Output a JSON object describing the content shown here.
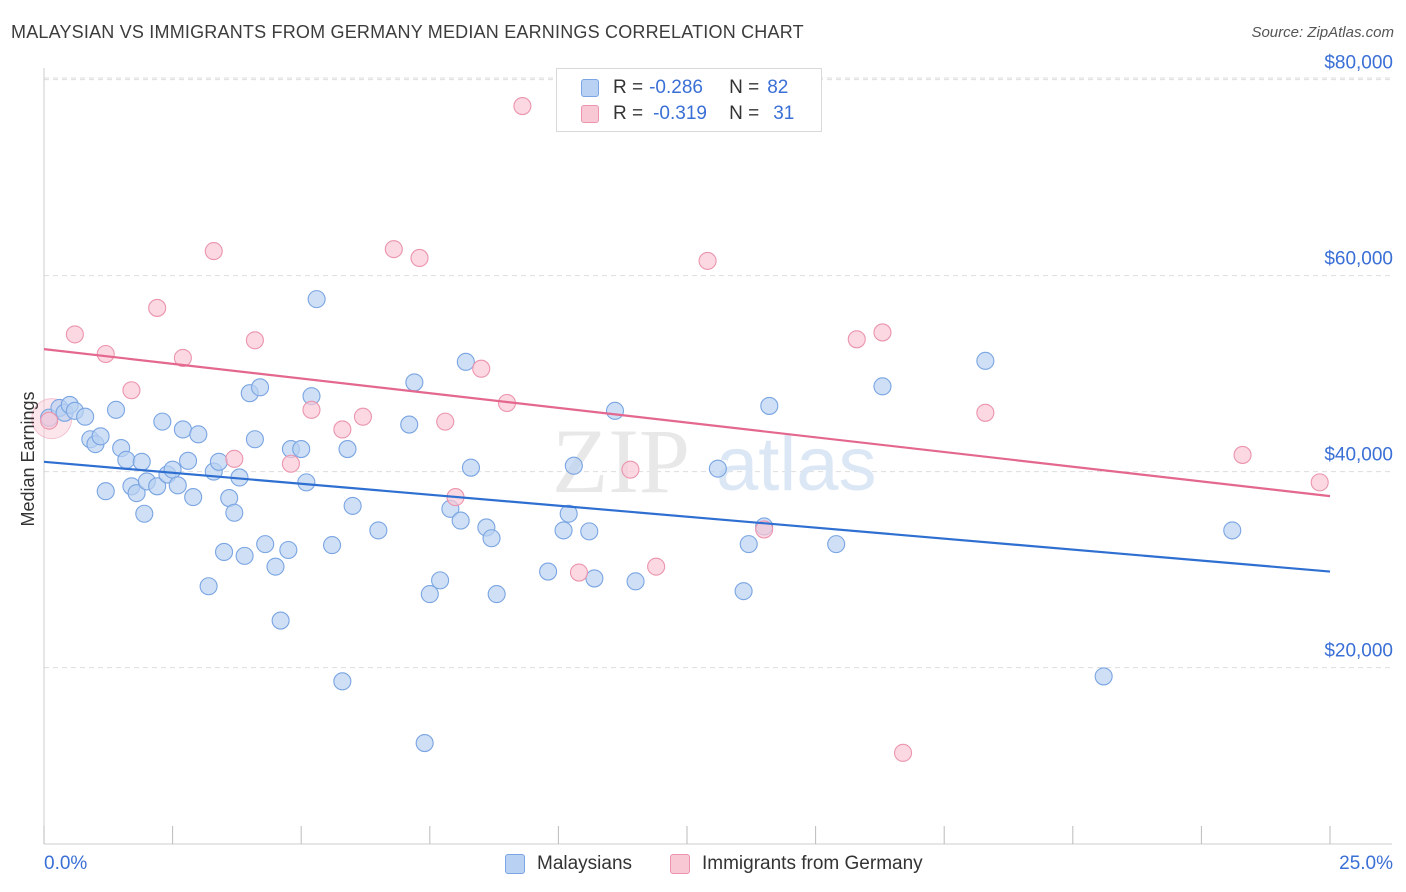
{
  "header": {
    "title": "MALAYSIAN VS IMMIGRANTS FROM GERMANY MEDIAN EARNINGS CORRELATION CHART",
    "source": "Source: ZipAtlas.com"
  },
  "watermark": {
    "zip": "ZIP",
    "atlas": "atlas"
  },
  "legend": {
    "rows": [
      {
        "r_label": "R =",
        "r_value": "-0.286",
        "n_label": "N =",
        "n_value": "82"
      },
      {
        "r_label": "R =",
        "r_value": "-0.319",
        "n_label": "N =",
        "n_value": "31"
      }
    ]
  },
  "bottom_legend": [
    "Malaysians",
    "Immigrants from Germany"
  ],
  "colors": {
    "blue_fill": "#b9d1f2",
    "blue_stroke": "#7aa5e2",
    "blue_line": "#2e6fd1",
    "pink_fill": "#f9c8d5",
    "pink_stroke": "#eb94ad",
    "pink_line": "#e4678e",
    "tick_text": "#3a6fd6",
    "grid": "#dddddd"
  },
  "chart_data": {
    "type": "scatter",
    "title": "MALAYSIAN VS IMMIGRANTS FROM GERMANY MEDIAN EARNINGS CORRELATION CHART",
    "ylabel": "Median Earnings",
    "xlabel": "",
    "xlim": [
      0,
      25
    ],
    "ylim": [
      2000,
      82000
    ],
    "x_tick_labels": [
      "0.0%",
      "25.0%"
    ],
    "y_ticks": [
      20000,
      40000,
      60000,
      80000
    ],
    "y_tick_labels": [
      "$20,000",
      "$40,000",
      "$60,000",
      "$80,000"
    ],
    "grid": true,
    "series": [
      {
        "name": "Malaysians",
        "r": -0.286,
        "n": 82,
        "trend": [
          [
            0,
            41000
          ],
          [
            25,
            29800
          ]
        ],
        "points": [
          [
            0.1,
            45500
          ],
          [
            0.3,
            46500
          ],
          [
            0.4,
            46000
          ],
          [
            0.5,
            46800
          ],
          [
            0.6,
            46200
          ],
          [
            0.8,
            45600
          ],
          [
            0.9,
            43300
          ],
          [
            1.0,
            42800
          ],
          [
            1.1,
            43600
          ],
          [
            1.2,
            38000
          ],
          [
            1.4,
            46300
          ],
          [
            1.5,
            42400
          ],
          [
            1.6,
            41200
          ],
          [
            1.7,
            38500
          ],
          [
            1.8,
            37800
          ],
          [
            1.9,
            41000
          ],
          [
            1.95,
            35700
          ],
          [
            2.0,
            39000
          ],
          [
            2.2,
            38500
          ],
          [
            2.3,
            45100
          ],
          [
            2.4,
            39700
          ],
          [
            2.5,
            40200
          ],
          [
            2.6,
            38600
          ],
          [
            2.7,
            44300
          ],
          [
            2.8,
            41100
          ],
          [
            2.9,
            37400
          ],
          [
            3.0,
            43800
          ],
          [
            3.2,
            28300
          ],
          [
            3.3,
            40000
          ],
          [
            3.4,
            41000
          ],
          [
            3.5,
            31800
          ],
          [
            3.6,
            37300
          ],
          [
            3.7,
            35800
          ],
          [
            3.8,
            39400
          ],
          [
            3.9,
            31400
          ],
          [
            4.0,
            48000
          ],
          [
            4.1,
            43300
          ],
          [
            4.2,
            48600
          ],
          [
            4.3,
            32600
          ],
          [
            4.5,
            30300
          ],
          [
            4.6,
            24800
          ],
          [
            4.75,
            32000
          ],
          [
            4.8,
            42300
          ],
          [
            5.0,
            42300
          ],
          [
            5.1,
            38900
          ],
          [
            5.2,
            47700
          ],
          [
            5.3,
            57600
          ],
          [
            5.6,
            32500
          ],
          [
            5.8,
            18600
          ],
          [
            5.9,
            42300
          ],
          [
            6.0,
            36500
          ],
          [
            6.5,
            34000
          ],
          [
            7.1,
            44800
          ],
          [
            7.2,
            49100
          ],
          [
            7.4,
            12300
          ],
          [
            7.5,
            27500
          ],
          [
            7.7,
            28900
          ],
          [
            7.9,
            36200
          ],
          [
            8.1,
            35000
          ],
          [
            8.2,
            51200
          ],
          [
            8.3,
            40400
          ],
          [
            8.6,
            34300
          ],
          [
            8.7,
            33200
          ],
          [
            8.8,
            27500
          ],
          [
            9.8,
            29800
          ],
          [
            10.1,
            34000
          ],
          [
            10.2,
            35700
          ],
          [
            10.3,
            40600
          ],
          [
            10.6,
            33900
          ],
          [
            10.7,
            29100
          ],
          [
            11.1,
            46200
          ],
          [
            11.5,
            28800
          ],
          [
            13.1,
            40300
          ],
          [
            13.6,
            27800
          ],
          [
            13.7,
            32600
          ],
          [
            14.0,
            34400
          ],
          [
            14.1,
            46700
          ],
          [
            15.4,
            32600
          ],
          [
            16.3,
            48700
          ],
          [
            18.3,
            51300
          ],
          [
            20.6,
            19100
          ],
          [
            23.1,
            34000
          ]
        ]
      },
      {
        "name": "Immigrants from Germany",
        "r": -0.319,
        "n": 31,
        "trend": [
          [
            0,
            52500
          ],
          [
            25,
            37500
          ]
        ],
        "points": [
          [
            0.1,
            45200
          ],
          [
            0.6,
            54000
          ],
          [
            1.2,
            52000
          ],
          [
            1.7,
            48300
          ],
          [
            2.2,
            56700
          ],
          [
            2.7,
            51600
          ],
          [
            3.3,
            62500
          ],
          [
            3.7,
            41300
          ],
          [
            4.1,
            53400
          ],
          [
            4.8,
            40800
          ],
          [
            5.2,
            46300
          ],
          [
            5.8,
            44300
          ],
          [
            6.2,
            45600
          ],
          [
            6.8,
            62700
          ],
          [
            7.3,
            61800
          ],
          [
            7.8,
            45100
          ],
          [
            8.0,
            37400
          ],
          [
            8.5,
            50500
          ],
          [
            9.0,
            47000
          ],
          [
            9.3,
            77300
          ],
          [
            10.4,
            29700
          ],
          [
            11.4,
            40200
          ],
          [
            11.9,
            30300
          ],
          [
            12.9,
            61500
          ],
          [
            14.0,
            34100
          ],
          [
            15.8,
            53500
          ],
          [
            16.3,
            54200
          ],
          [
            16.7,
            11300
          ],
          [
            18.3,
            46000
          ],
          [
            23.3,
            41700
          ],
          [
            24.8,
            38900
          ]
        ]
      }
    ]
  }
}
